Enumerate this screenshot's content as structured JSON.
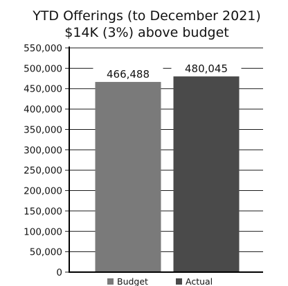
{
  "chart_data": {
    "type": "bar",
    "title": "YTD Offerings (to December 2021)",
    "subtitle": "$14K (3%) above budget",
    "categories": [
      "Budget",
      "Actual"
    ],
    "values": [
      466488,
      480045
    ],
    "value_labels": [
      "466,488",
      "480,045"
    ],
    "colors": [
      "#7a7a7a",
      "#4a4a4a"
    ],
    "ylim": [
      0,
      550000
    ],
    "yticks": [
      0,
      50000,
      100000,
      150000,
      200000,
      250000,
      300000,
      350000,
      400000,
      450000,
      500000,
      550000
    ],
    "ytick_labels": [
      "0",
      "50,000",
      "100,000",
      "150,000",
      "200,000",
      "250,000",
      "300,000",
      "350,000",
      "400,000",
      "450,000",
      "500,000",
      "550,000"
    ],
    "grid": true,
    "legend": {
      "position": "bottom",
      "entries": [
        {
          "label": "Budget",
          "color": "#7a7a7a"
        },
        {
          "label": "Actual",
          "color": "#4a4a4a"
        }
      ]
    }
  }
}
